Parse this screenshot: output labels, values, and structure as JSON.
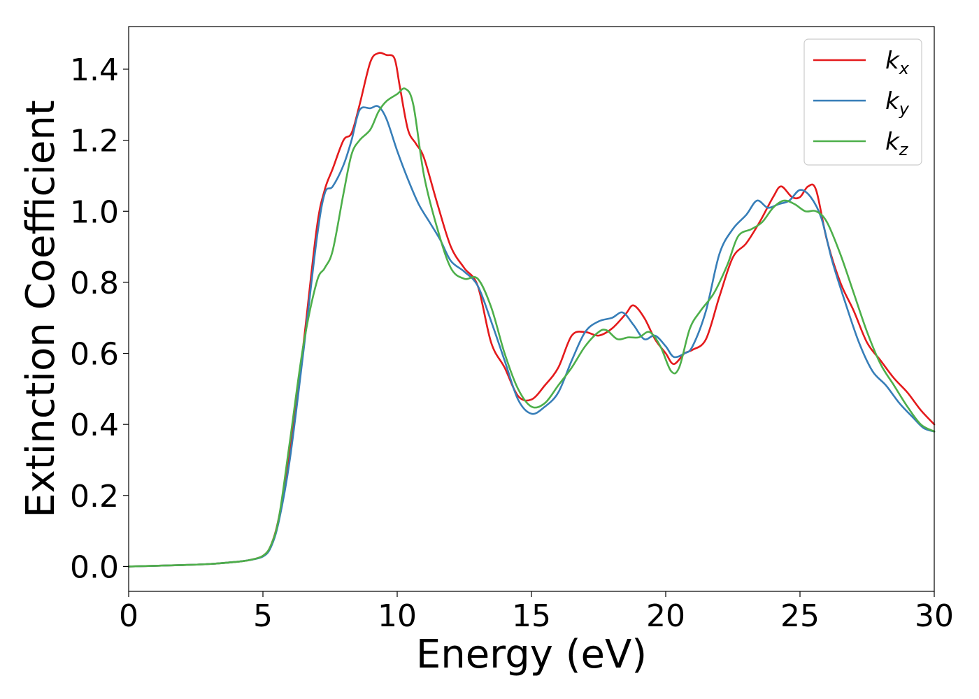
{
  "chart_data": {
    "type": "line",
    "title": "",
    "xlabel": "Energy (eV)",
    "ylabel": "Extinction Coefficient",
    "xlim": [
      0,
      30
    ],
    "ylim": [
      -0.07,
      1.52
    ],
    "xticks": [
      0,
      5,
      10,
      15,
      20,
      25,
      30
    ],
    "yticks": [
      0.0,
      0.2,
      0.4,
      0.6,
      0.8,
      1.0,
      1.2,
      1.4
    ],
    "xtick_labels": [
      "0",
      "5",
      "10",
      "15",
      "20",
      "25",
      "30"
    ],
    "ytick_labels": [
      "0.0",
      "0.2",
      "0.4",
      "0.6",
      "0.8",
      "1.0",
      "1.2",
      "1.4"
    ],
    "grid": false,
    "legend_position": "top-right",
    "series": [
      {
        "name": "k_x",
        "label_main": "k",
        "label_sub": "x",
        "color": "#e41a1c",
        "x": [
          0,
          1,
          2,
          3,
          4,
          4.5,
          5,
          5.3,
          5.6,
          6,
          6.5,
          7,
          7.3,
          7.6,
          8,
          8.3,
          8.6,
          9,
          9.3,
          9.6,
          9.9,
          10.1,
          10.4,
          10.7,
          11,
          11.5,
          12,
          12.5,
          13,
          13.5,
          14,
          14.5,
          15,
          15.5,
          16,
          16.5,
          17,
          17.5,
          18,
          18.5,
          18.8,
          19.2,
          19.6,
          20,
          20.3,
          20.7,
          21,
          21.5,
          22,
          22.5,
          23,
          23.5,
          24,
          24.3,
          24.7,
          25,
          25.3,
          25.6,
          26,
          26.5,
          27,
          27.5,
          28,
          28.5,
          29,
          29.5,
          30
        ],
        "y": [
          0.0,
          0.002,
          0.004,
          0.007,
          0.013,
          0.018,
          0.03,
          0.06,
          0.14,
          0.32,
          0.62,
          0.95,
          1.06,
          1.12,
          1.2,
          1.22,
          1.3,
          1.42,
          1.445,
          1.44,
          1.43,
          1.35,
          1.23,
          1.19,
          1.15,
          1.02,
          0.9,
          0.84,
          0.79,
          0.63,
          0.56,
          0.48,
          0.47,
          0.51,
          0.56,
          0.65,
          0.66,
          0.65,
          0.67,
          0.71,
          0.735,
          0.7,
          0.64,
          0.6,
          0.57,
          0.6,
          0.61,
          0.64,
          0.76,
          0.87,
          0.91,
          0.97,
          1.04,
          1.07,
          1.04,
          1.04,
          1.07,
          1.06,
          0.92,
          0.8,
          0.72,
          0.63,
          0.58,
          0.53,
          0.49,
          0.44,
          0.4
        ]
      },
      {
        "name": "k_y",
        "label_main": "k",
        "label_sub": "y",
        "color": "#377eb8",
        "x": [
          0,
          1,
          2,
          3,
          4,
          4.5,
          5,
          5.3,
          5.6,
          6,
          6.5,
          7,
          7.3,
          7.6,
          8,
          8.3,
          8.6,
          9,
          9.3,
          9.6,
          10,
          10.4,
          10.8,
          11.2,
          11.6,
          12,
          12.5,
          13,
          13.5,
          14,
          14.5,
          15,
          15.5,
          16,
          16.5,
          17,
          17.5,
          18,
          18.4,
          18.8,
          19.2,
          19.6,
          20,
          20.3,
          20.7,
          21,
          21.5,
          22,
          22.5,
          23,
          23.4,
          23.8,
          24.2,
          24.6,
          25,
          25.4,
          25.8,
          26.2,
          26.7,
          27.2,
          27.7,
          28.2,
          28.7,
          29.2,
          29.6,
          30
        ],
        "y": [
          0.0,
          0.002,
          0.004,
          0.007,
          0.013,
          0.018,
          0.028,
          0.055,
          0.13,
          0.3,
          0.6,
          0.92,
          1.05,
          1.07,
          1.13,
          1.2,
          1.285,
          1.29,
          1.295,
          1.26,
          1.17,
          1.09,
          1.02,
          0.97,
          0.92,
          0.86,
          0.83,
          0.79,
          0.69,
          0.58,
          0.47,
          0.43,
          0.45,
          0.49,
          0.58,
          0.66,
          0.69,
          0.7,
          0.715,
          0.68,
          0.64,
          0.65,
          0.62,
          0.59,
          0.6,
          0.62,
          0.72,
          0.88,
          0.95,
          0.99,
          1.03,
          1.01,
          1.02,
          1.03,
          1.06,
          1.04,
          0.98,
          0.86,
          0.74,
          0.63,
          0.55,
          0.51,
          0.46,
          0.42,
          0.39,
          0.38
        ]
      },
      {
        "name": "k_z",
        "label_main": "k",
        "label_sub": "z",
        "color": "#4daf4a",
        "x": [
          0,
          1,
          2,
          3,
          4,
          4.5,
          5,
          5.3,
          5.6,
          6,
          6.5,
          7,
          7.3,
          7.6,
          8,
          8.3,
          8.6,
          9,
          9.3,
          9.6,
          10,
          10.3,
          10.6,
          11,
          11.5,
          12,
          12.5,
          13,
          13.5,
          14,
          14.5,
          15,
          15.5,
          16,
          16.5,
          17,
          17.5,
          17.8,
          18.2,
          18.6,
          19,
          19.4,
          19.8,
          20.2,
          20.5,
          20.9,
          21.3,
          21.8,
          22.3,
          22.7,
          23.2,
          23.6,
          24,
          24.4,
          24.8,
          25.2,
          25.6,
          26,
          26.5,
          27,
          27.5,
          28,
          28.5,
          29,
          29.5,
          30
        ],
        "y": [
          0.0,
          0.002,
          0.004,
          0.007,
          0.013,
          0.018,
          0.03,
          0.06,
          0.14,
          0.35,
          0.62,
          0.8,
          0.84,
          0.89,
          1.05,
          1.16,
          1.2,
          1.23,
          1.28,
          1.31,
          1.33,
          1.345,
          1.3,
          1.1,
          0.95,
          0.84,
          0.81,
          0.81,
          0.73,
          0.6,
          0.5,
          0.45,
          0.46,
          0.51,
          0.56,
          0.62,
          0.66,
          0.665,
          0.64,
          0.645,
          0.645,
          0.66,
          0.62,
          0.55,
          0.56,
          0.67,
          0.72,
          0.77,
          0.85,
          0.93,
          0.95,
          0.97,
          1.01,
          1.03,
          1.02,
          1.0,
          1.0,
          0.97,
          0.88,
          0.77,
          0.66,
          0.57,
          0.51,
          0.45,
          0.4,
          0.38
        ]
      }
    ]
  }
}
